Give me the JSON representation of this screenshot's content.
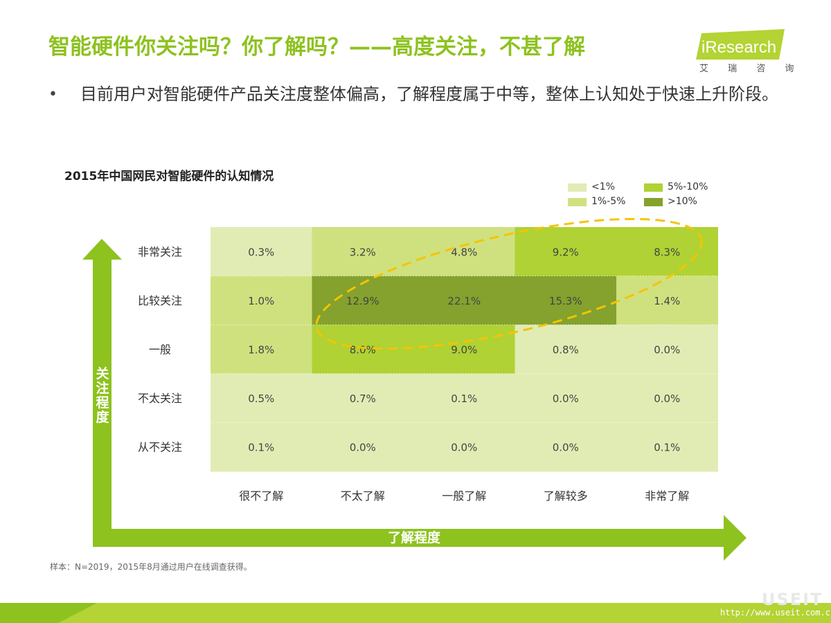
{
  "header": {
    "title": "智能硬件你关注吗？你了解吗？——高度关注，不甚了解",
    "logo_text": "iResearch",
    "logo_sub": "艾 瑞 咨 询"
  },
  "bullet": {
    "mark": "•",
    "text": "目前用户对智能硬件产品关注度整体偏高，了解程度属于中等，整体上认知处于快速上升阶段。"
  },
  "note": "样本：N=2019，2015年8月通过用户在线调查获得。",
  "footer": {
    "url": "http://www.useit.com.cn",
    "mark": "USEIT"
  },
  "colors": {
    "accent": "#8dc21f",
    "bucket_lt1": "#e1ecb4",
    "bucket_1_5": "#cfe17f",
    "bucket_5_10": "#b0d234",
    "bucket_gt10": "#84a22d",
    "arrow": "#8dc21f",
    "ellipse": "#f5c400"
  },
  "legend": [
    {
      "label": "<1%",
      "color": "#e1ecb4"
    },
    {
      "label": "5%-10%",
      "color": "#b0d234"
    },
    {
      "label": "1%-5%",
      "color": "#cfe17f"
    },
    {
      "label": ">10%",
      "color": "#84a22d"
    }
  ],
  "chart_data": {
    "type": "heatmap",
    "title": "2015年中国网民对智能硬件的认知情况",
    "xlabel": "了解程度",
    "ylabel": "关注程度",
    "x_categories": [
      "很不了解",
      "不太了解",
      "一般了解",
      "了解较多",
      "非常了解"
    ],
    "y_categories": [
      "非常关注",
      "比较关注",
      "一般",
      "不太关注",
      "从不关注"
    ],
    "values": [
      [
        0.3,
        3.2,
        4.8,
        9.2,
        8.3
      ],
      [
        1.0,
        12.9,
        22.1,
        15.3,
        1.4
      ],
      [
        1.8,
        8.0,
        9.0,
        0.8,
        0.0
      ],
      [
        0.5,
        0.7,
        0.1,
        0.0,
        0.0
      ],
      [
        0.1,
        0.0,
        0.0,
        0.0,
        0.1
      ]
    ],
    "labels": [
      [
        "0.3%",
        "3.2%",
        "4.8%",
        "9.2%",
        "8.3%"
      ],
      [
        "1.0%",
        "12.9%",
        "22.1%",
        "15.3%",
        "1.4%"
      ],
      [
        "1.8%",
        "8.0%",
        "9.0%",
        "0.8%",
        "0.0%"
      ],
      [
        "0.5%",
        "0.7%",
        "0.1%",
        "0.0%",
        "0.0%"
      ],
      [
        "0.1%",
        "0.0%",
        "0.0%",
        "0.0%",
        "0.1%"
      ]
    ],
    "buckets": [
      {
        "label": "<1%",
        "max": 1
      },
      {
        "label": "1%-5%",
        "max": 5
      },
      {
        "label": "5%-10%",
        "max": 10
      },
      {
        "label": ">10%",
        "max": 100
      }
    ],
    "annotation": "dashed ellipse highlighting high-attention, mid-understanding cells"
  }
}
